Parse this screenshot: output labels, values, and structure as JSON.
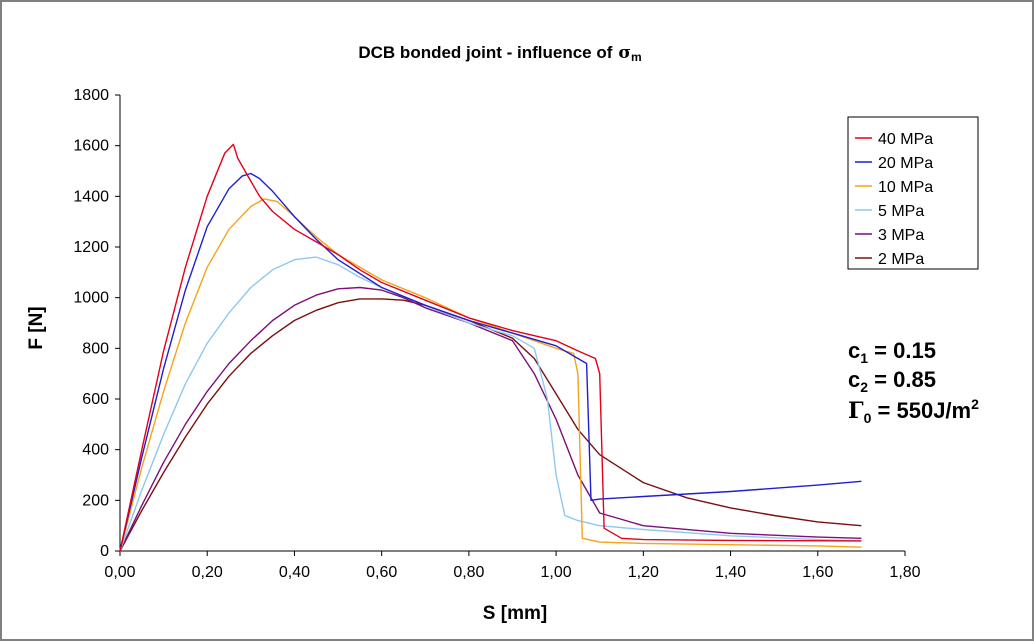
{
  "chart_data": {
    "type": "line",
    "title": "DCB bonded joint - influence of",
    "title_symbol": "σ",
    "title_symbol_sub": "m",
    "xlabel": "S [mm]",
    "ylabel": "F [N]",
    "xlim": [
      0,
      1.8
    ],
    "ylim": [
      0,
      1800
    ],
    "xticks": [
      "0,00",
      "0,20",
      "0,40",
      "0,60",
      "0,80",
      "1,00",
      "1,20",
      "1,40",
      "1,60",
      "1,80"
    ],
    "yticks": [
      "0",
      "200",
      "400",
      "600",
      "800",
      "1000",
      "1200",
      "1400",
      "1600",
      "1800"
    ],
    "legend_position": "top-right",
    "grid": false,
    "series": [
      {
        "name": "40 MPa",
        "color": "#e3001b",
        "x": [
          0,
          0.05,
          0.1,
          0.15,
          0.2,
          0.24,
          0.26,
          0.27,
          0.28,
          0.3,
          0.32,
          0.35,
          0.4,
          0.45,
          0.5,
          0.55,
          0.6,
          0.7,
          0.8,
          0.9,
          0.95,
          1.0,
          1.05,
          1.09,
          1.1,
          1.11,
          1.15,
          1.2,
          1.4,
          1.7
        ],
        "y": [
          0,
          400,
          790,
          1120,
          1400,
          1570,
          1605,
          1550,
          1520,
          1460,
          1400,
          1340,
          1270,
          1220,
          1170,
          1110,
          1060,
          990,
          920,
          870,
          850,
          830,
          790,
          760,
          700,
          90,
          50,
          45,
          42,
          40
        ]
      },
      {
        "name": "20 MPa",
        "color": "#1f1fcf",
        "x": [
          0,
          0.05,
          0.1,
          0.15,
          0.2,
          0.25,
          0.28,
          0.3,
          0.32,
          0.35,
          0.4,
          0.45,
          0.5,
          0.6,
          0.7,
          0.8,
          0.9,
          1.0,
          1.05,
          1.07,
          1.08,
          1.1,
          1.2,
          1.4,
          1.6,
          1.7
        ],
        "y": [
          0,
          370,
          720,
          1030,
          1280,
          1430,
          1480,
          1490,
          1470,
          1420,
          1320,
          1230,
          1150,
          1040,
          970,
          910,
          860,
          810,
          760,
          740,
          200,
          205,
          215,
          235,
          260,
          275
        ]
      },
      {
        "name": "10 MPa",
        "color": "#f5a31a",
        "x": [
          0,
          0.05,
          0.1,
          0.15,
          0.2,
          0.25,
          0.3,
          0.33,
          0.36,
          0.4,
          0.45,
          0.5,
          0.6,
          0.7,
          0.8,
          0.9,
          1.0,
          1.04,
          1.05,
          1.06,
          1.1,
          1.2,
          1.4,
          1.6,
          1.7
        ],
        "y": [
          0,
          330,
          630,
          900,
          1120,
          1270,
          1360,
          1390,
          1380,
          1320,
          1240,
          1170,
          1070,
          1000,
          920,
          860,
          800,
          780,
          700,
          50,
          35,
          30,
          25,
          20,
          15
        ]
      },
      {
        "name": "5 MPa",
        "color": "#8ec8ef",
        "x": [
          0,
          0.05,
          0.1,
          0.15,
          0.2,
          0.25,
          0.3,
          0.35,
          0.4,
          0.45,
          0.5,
          0.55,
          0.6,
          0.7,
          0.8,
          0.9,
          0.95,
          0.98,
          1.0,
          1.02,
          1.05,
          1.1,
          1.2,
          1.4,
          1.6,
          1.7
        ],
        "y": [
          0,
          240,
          460,
          660,
          820,
          940,
          1040,
          1110,
          1150,
          1160,
          1130,
          1080,
          1040,
          970,
          900,
          850,
          800,
          600,
          300,
          140,
          120,
          100,
          85,
          60,
          45,
          40
        ]
      },
      {
        "name": "3 MPa",
        "color": "#7b0f7b",
        "x": [
          0,
          0.05,
          0.1,
          0.15,
          0.2,
          0.25,
          0.3,
          0.35,
          0.4,
          0.45,
          0.5,
          0.55,
          0.6,
          0.65,
          0.7,
          0.8,
          0.9,
          0.95,
          1.0,
          1.05,
          1.1,
          1.2,
          1.4,
          1.6,
          1.7
        ],
        "y": [
          0,
          180,
          350,
          500,
          630,
          740,
          830,
          910,
          970,
          1010,
          1035,
          1040,
          1030,
          1000,
          960,
          900,
          830,
          700,
          520,
          300,
          150,
          100,
          70,
          55,
          50
        ]
      },
      {
        "name": "2 MPa",
        "color": "#7a1010",
        "x": [
          0,
          0.05,
          0.1,
          0.15,
          0.2,
          0.25,
          0.3,
          0.35,
          0.4,
          0.45,
          0.5,
          0.55,
          0.6,
          0.65,
          0.7,
          0.8,
          0.9,
          0.95,
          1.0,
          1.05,
          1.1,
          1.2,
          1.3,
          1.4,
          1.5,
          1.6,
          1.7
        ],
        "y": [
          0,
          160,
          310,
          450,
          580,
          690,
          780,
          850,
          910,
          950,
          980,
          995,
          995,
          990,
          970,
          910,
          840,
          760,
          620,
          480,
          380,
          270,
          210,
          170,
          140,
          115,
          100
        ]
      }
    ],
    "annotations": [
      {
        "label": "c",
        "sub": "1",
        "value": " = 0.15"
      },
      {
        "label": "c",
        "sub": "2",
        "value": " = 0.85"
      },
      {
        "label": "Γ",
        "sub": "0",
        "value": " = 550J/m",
        "sup": "2"
      }
    ]
  }
}
